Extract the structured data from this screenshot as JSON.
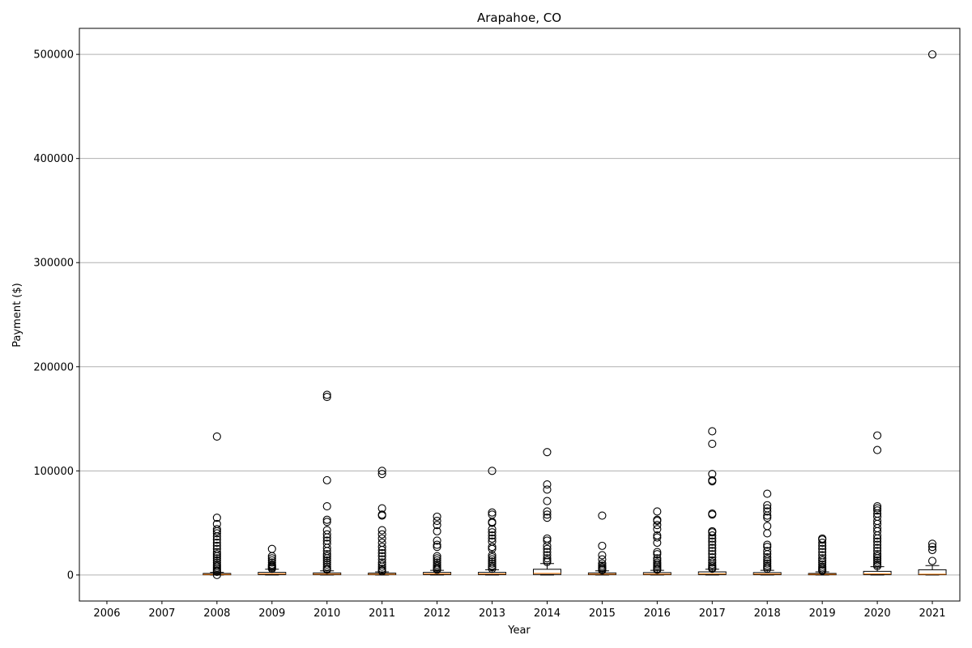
{
  "chart_data": {
    "type": "box",
    "title": "Arapahoe, CO",
    "xlabel": "Year",
    "ylabel": "Payment ($)",
    "ylim": [
      -25000,
      525000
    ],
    "yticks": [
      0,
      100000,
      200000,
      300000,
      400000,
      500000
    ],
    "grid": "horizontal",
    "categories": [
      "2006",
      "2007",
      "2008",
      "2009",
      "2010",
      "2011",
      "2012",
      "2013",
      "2014",
      "2015",
      "2016",
      "2017",
      "2018",
      "2019",
      "2020",
      "2021"
    ],
    "boxes": [
      {
        "year": "2006",
        "empty": true
      },
      {
        "year": "2007",
        "empty": true
      },
      {
        "year": "2008",
        "whisker_low": 0,
        "q1": 200,
        "median": 600,
        "q3": 1500,
        "whisker_high": 2500,
        "outliers": [
          133000,
          55000,
          49000,
          44000,
          42000,
          40000,
          37000,
          34000,
          31000,
          28000,
          25000,
          22000,
          20000,
          18000,
          16000,
          14000,
          12000,
          10000,
          8500,
          7000,
          5500,
          4000,
          3000,
          0
        ]
      },
      {
        "year": "2009",
        "whisker_low": 0,
        "q1": 400,
        "median": 1200,
        "q3": 2500,
        "whisker_high": 5500,
        "outliers": [
          25000,
          18000,
          16000,
          14000,
          12000,
          10000,
          9000,
          8000,
          7000,
          6000
        ]
      },
      {
        "year": "2010",
        "whisker_low": 0,
        "q1": 300,
        "median": 900,
        "q3": 2000,
        "whisker_high": 4000,
        "outliers": [
          173000,
          171000,
          91000,
          66000,
          53000,
          51000,
          43000,
          39000,
          36000,
          33000,
          30000,
          26000,
          23000,
          20000,
          18000,
          16000,
          14000,
          12000,
          10000,
          8000,
          6000,
          5000
        ]
      },
      {
        "year": "2011",
        "whisker_low": 0,
        "q1": 300,
        "median": 800,
        "q3": 1800,
        "whisker_high": 3000,
        "outliers": [
          100000,
          97000,
          64000,
          58000,
          57000,
          43000,
          39000,
          35000,
          31000,
          27000,
          24000,
          21000,
          18000,
          15000,
          12000,
          10000,
          8000,
          6000,
          4500,
          3500
        ]
      },
      {
        "year": "2012",
        "whisker_low": 0,
        "q1": 400,
        "median": 1200,
        "q3": 2500,
        "whisker_high": 4500,
        "outliers": [
          56000,
          52000,
          48000,
          42000,
          33000,
          29000,
          27000,
          18000,
          16000,
          14000,
          12000,
          10000,
          8500,
          7000,
          6000,
          5000
        ]
      },
      {
        "year": "2013",
        "whisker_low": 0,
        "q1": 400,
        "median": 1100,
        "q3": 2500,
        "whisker_high": 5000,
        "outliers": [
          100000,
          60000,
          58000,
          51000,
          50000,
          44000,
          41000,
          38000,
          35000,
          32000,
          27000,
          25000,
          19000,
          17000,
          15000,
          13000,
          11000,
          9000,
          7500,
          6000
        ]
      },
      {
        "year": "2014",
        "whisker_low": 0,
        "q1": 500,
        "median": 1500,
        "q3": 5500,
        "whisker_high": 11000,
        "outliers": [
          118000,
          87000,
          82000,
          71000,
          61000,
          58000,
          55000,
          35000,
          33000,
          28000,
          25000,
          22000,
          19000,
          16000,
          14000,
          12500
        ]
      },
      {
        "year": "2015",
        "whisker_low": 0,
        "q1": 300,
        "median": 900,
        "q3": 2000,
        "whisker_high": 4000,
        "outliers": [
          57000,
          28000,
          19000,
          15000,
          11000,
          9000,
          7500,
          6500,
          5500,
          4500
        ]
      },
      {
        "year": "2016",
        "whisker_low": 0,
        "q1": 300,
        "median": 900,
        "q3": 2300,
        "whisker_high": 4500,
        "outliers": [
          61000,
          53000,
          52000,
          48000,
          44000,
          38000,
          36000,
          31000,
          22000,
          20000,
          16000,
          14000,
          12000,
          10500,
          9000,
          7500,
          6000,
          5000
        ]
      },
      {
        "year": "2017",
        "whisker_low": 0,
        "q1": 400,
        "median": 1200,
        "q3": 3000,
        "whisker_high": 5500,
        "outliers": [
          138000,
          126000,
          97000,
          91000,
          90000,
          59000,
          58000,
          42000,
          41000,
          38000,
          35000,
          32000,
          29000,
          26000,
          23000,
          20000,
          17000,
          14000,
          12000,
          10000,
          8500,
          7000,
          6000
        ]
      },
      {
        "year": "2018",
        "whisker_low": 0,
        "q1": 300,
        "median": 1000,
        "q3": 2300,
        "whisker_high": 4500,
        "outliers": [
          78000,
          67000,
          64000,
          61000,
          57000,
          55000,
          47000,
          40000,
          29000,
          27000,
          23000,
          20000,
          17000,
          15000,
          13000,
          11000,
          9000,
          7500,
          6000
        ]
      },
      {
        "year": "2019",
        "whisker_low": 0,
        "q1": 200,
        "median": 700,
        "q3": 1500,
        "whisker_high": 3000,
        "outliers": [
          35000,
          34000,
          31000,
          28000,
          25000,
          22000,
          19000,
          16000,
          14000,
          12000,
          10000,
          8000,
          6500,
          5000,
          4000
        ]
      },
      {
        "year": "2020",
        "whisker_low": 0,
        "q1": 400,
        "median": 1200,
        "q3": 3500,
        "whisker_high": 8000,
        "outliers": [
          134000,
          120000,
          66000,
          64000,
          62000,
          59000,
          56000,
          52000,
          49000,
          45000,
          42000,
          38000,
          35000,
          32000,
          29000,
          26000,
          23000,
          20000,
          18000,
          16000,
          14000,
          12000,
          10000,
          8500
        ]
      },
      {
        "year": "2021",
        "whisker_low": 0,
        "q1": 300,
        "median": 800,
        "q3": 5000,
        "whisker_high": 9000,
        "outliers": [
          500000,
          30000,
          27000,
          24000,
          13500
        ]
      }
    ],
    "colors": {
      "box": "#000000",
      "median": "#ff7f0e",
      "grid": "#b0b0b0",
      "outlier": "#000000",
      "background": "#ffffff"
    }
  }
}
